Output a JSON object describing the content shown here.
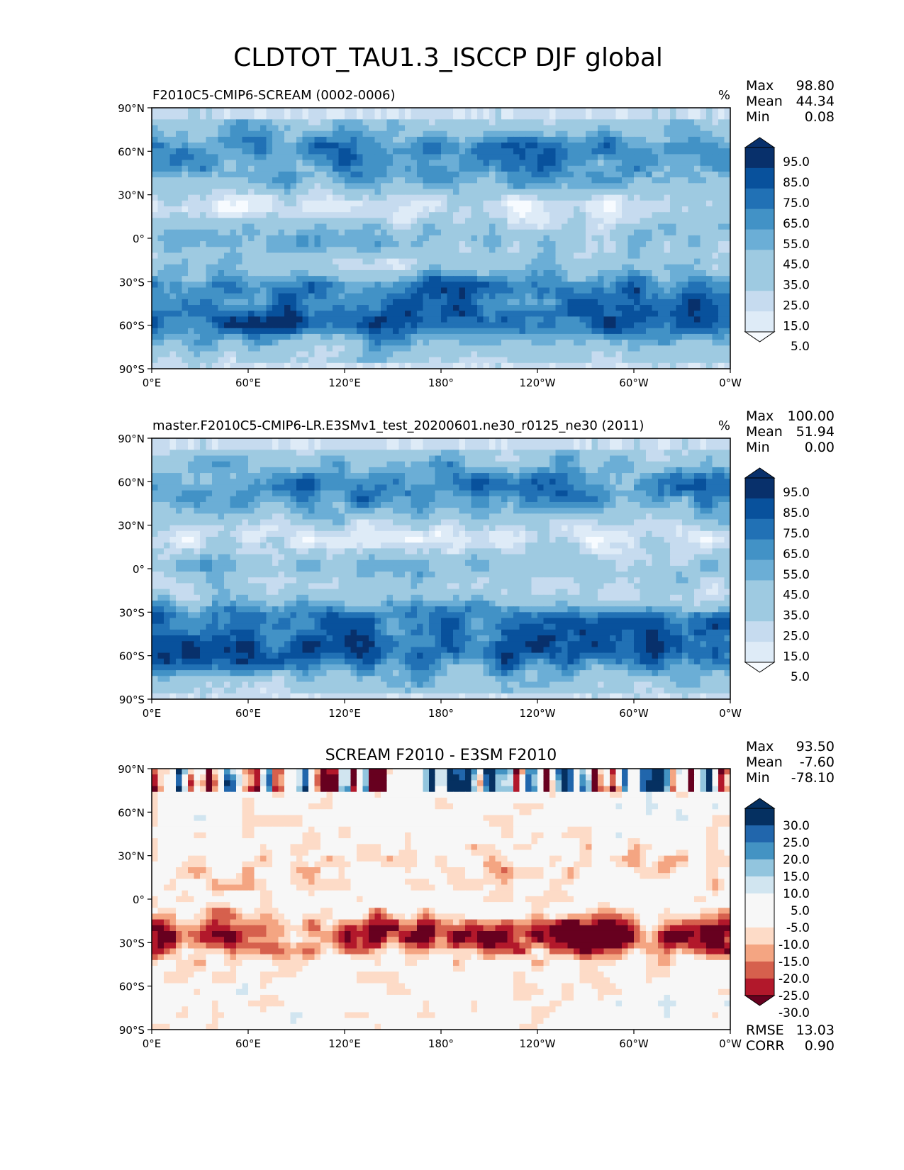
{
  "figure": {
    "title": "CLDTOT_TAU1.3_ISCCP DJF global"
  },
  "axes": {
    "lat_ticks": [
      "90°N",
      "60°N",
      "30°N",
      "0°",
      "30°S",
      "60°S",
      "90°S"
    ],
    "lon_ticks": [
      "0°E",
      "60°E",
      "120°E",
      "180°",
      "120°W",
      "60°W",
      "0°W"
    ]
  },
  "panels": [
    {
      "title": "F2010C5-CMIP6-SCREAM (0002-0006)",
      "units": "%",
      "stats": [
        {
          "label": "Max",
          "value": "98.80"
        },
        {
          "label": "Mean",
          "value": "44.34"
        },
        {
          "label": "Min",
          "value": "0.08"
        }
      ],
      "colorbar": [
        "95.0",
        "85.0",
        "75.0",
        "65.0",
        "55.0",
        "45.0",
        "35.0",
        "25.0",
        "15.0",
        "5.0"
      ],
      "extra_stats": []
    },
    {
      "title": "master.F2010C5-CMIP6-LR.E3SMv1_test_20200601.ne30_r0125_ne30 (2011)",
      "units": "%",
      "stats": [
        {
          "label": "Max",
          "value": "100.00"
        },
        {
          "label": "Mean",
          "value": "51.94"
        },
        {
          "label": "Min",
          "value": "0.00"
        }
      ],
      "colorbar": [
        "95.0",
        "85.0",
        "75.0",
        "65.0",
        "55.0",
        "45.0",
        "35.0",
        "25.0",
        "15.0",
        "5.0"
      ],
      "extra_stats": []
    },
    {
      "title": "SCREAM F2010 - E3SM F2010",
      "units": "",
      "stats": [
        {
          "label": "Max",
          "value": "93.50"
        },
        {
          "label": "Mean",
          "value": "-7.60"
        },
        {
          "label": "Min",
          "value": "-78.10"
        }
      ],
      "colorbar": [
        "30.0",
        "25.0",
        "20.0",
        "15.0",
        "10.0",
        "5.0",
        "-5.0",
        "-10.0",
        "-15.0",
        "-20.0",
        "-25.0",
        "-30.0"
      ],
      "extra_stats": [
        {
          "label": "RMSE",
          "value": "13.03"
        },
        {
          "label": "CORR",
          "value": "0.90"
        }
      ]
    }
  ],
  "colors": {
    "blues": [
      "#f7fbff",
      "#deebf7",
      "#c6dbef",
      "#9ecae1",
      "#6baed6",
      "#4292c6",
      "#2171b5",
      "#08519c",
      "#08306b"
    ],
    "diverging": [
      "#053061",
      "#2166ac",
      "#4393c3",
      "#92c5de",
      "#d1e5f0",
      "#f7f7f7",
      "#fddbc7",
      "#f4a582",
      "#d6604d",
      "#b2182b",
      "#67001f"
    ]
  },
  "chart_data": [
    {
      "type": "heatmap",
      "title": "F2010C5-CMIP6-SCREAM (0002-0006)",
      "variable": "CLDTOT_TAU1.3_ISCCP",
      "season": "DJF",
      "units": "%",
      "x": "longitude",
      "y": "latitude",
      "xlim": [
        0,
        360
      ],
      "ylim": [
        -90,
        90
      ],
      "max": 98.8,
      "mean": 44.34,
      "min": 0.08,
      "levels": [
        5,
        15,
        25,
        35,
        45,
        55,
        65,
        75,
        85,
        95
      ],
      "colormap": "Blues",
      "colorbar_extend": "both"
    },
    {
      "type": "heatmap",
      "title": "master.F2010C5-CMIP6-LR.E3SMv1_test_20200601.ne30_r0125_ne30 (2011)",
      "variable": "CLDTOT_TAU1.3_ISCCP",
      "season": "DJF",
      "units": "%",
      "x": "longitude",
      "y": "latitude",
      "xlim": [
        0,
        360
      ],
      "ylim": [
        -90,
        90
      ],
      "max": 100.0,
      "mean": 51.94,
      "min": 0.0,
      "levels": [
        5,
        15,
        25,
        35,
        45,
        55,
        65,
        75,
        85,
        95
      ],
      "colormap": "Blues",
      "colorbar_extend": "both"
    },
    {
      "type": "heatmap",
      "title": "SCREAM F2010 - E3SM F2010",
      "variable": "CLDTOT_TAU1.3_ISCCP",
      "season": "DJF",
      "x": "longitude",
      "y": "latitude",
      "xlim": [
        0,
        360
      ],
      "ylim": [
        -90,
        90
      ],
      "max": 93.5,
      "mean": -7.6,
      "min": -78.1,
      "rmse": 13.03,
      "corr": 0.9,
      "levels": [
        -30,
        -25,
        -20,
        -15,
        -10,
        -5,
        5,
        10,
        15,
        20,
        25,
        30
      ],
      "colormap": "RdBu",
      "colorbar_extend": "both"
    }
  ]
}
